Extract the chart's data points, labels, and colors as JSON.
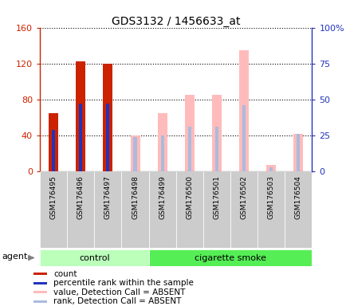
{
  "title": "GDS3132 / 1456633_at",
  "samples": [
    "GSM176495",
    "GSM176496",
    "GSM176497",
    "GSM176498",
    "GSM176499",
    "GSM176500",
    "GSM176501",
    "GSM176502",
    "GSM176503",
    "GSM176504"
  ],
  "groups": [
    "control",
    "control",
    "control",
    "control",
    "cigarette smoke",
    "cigarette smoke",
    "cigarette smoke",
    "cigarette smoke",
    "cigarette smoke",
    "cigarette smoke"
  ],
  "count_values": [
    65,
    122,
    120,
    0,
    0,
    0,
    0,
    0,
    0,
    0
  ],
  "rank_values_pct": [
    29,
    47,
    47,
    0,
    0,
    0,
    0,
    0,
    0,
    0
  ],
  "absent_value_values": [
    0,
    0,
    0,
    40,
    65,
    85,
    85,
    135,
    7,
    42
  ],
  "absent_rank_pct": [
    0,
    0,
    0,
    24,
    25,
    31,
    31,
    46,
    3,
    26
  ],
  "ylim_left": [
    0,
    160
  ],
  "ylim_right": [
    0,
    100
  ],
  "yticks_left": [
    0,
    40,
    80,
    120,
    160
  ],
  "yticks_right": [
    0,
    25,
    50,
    75,
    100
  ],
  "ytick_labels_left": [
    "0",
    "40",
    "80",
    "120",
    "160"
  ],
  "ytick_labels_right": [
    "0",
    "25",
    "50",
    "75",
    "100%"
  ],
  "left_color": "#cc2200",
  "rank_color": "#2233bb",
  "absent_value_color": "#ffbbbb",
  "absent_rank_color": "#aabbdd",
  "group_control_color": "#bbffbb",
  "group_smoke_color": "#55ee55",
  "agent_label": "agent",
  "legend_items": [
    {
      "color": "#cc2200",
      "label": "count"
    },
    {
      "color": "#2233bb",
      "label": "percentile rank within the sample"
    },
    {
      "color": "#ffbbbb",
      "label": "value, Detection Call = ABSENT"
    },
    {
      "color": "#aabbdd",
      "label": "rank, Detection Call = ABSENT"
    }
  ],
  "bar_width": 0.35,
  "rank_bar_width": 0.12,
  "plot_bg": "#ffffff",
  "tick_area_bg": "#cccccc"
}
